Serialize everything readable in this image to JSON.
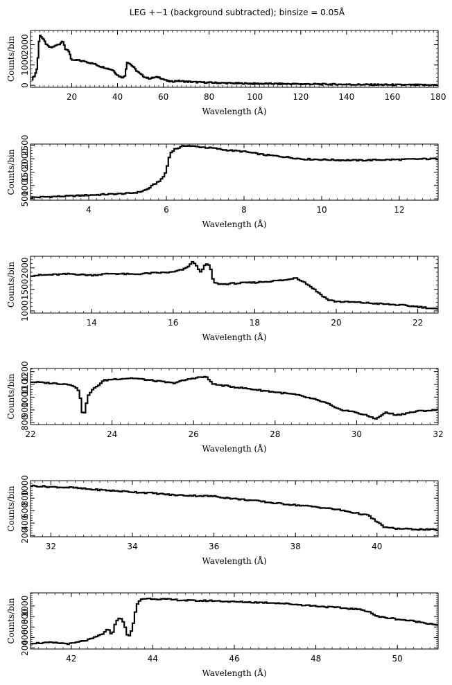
{
  "title": "LEG +−1 (background subtracted); binsize = 0.05Å",
  "colors": {
    "line": "#000000",
    "background": "#ffffff"
  },
  "chart_data": [
    {
      "type": "line",
      "xlabel": "Wavelength (Å)",
      "ylabel": "Counts/bin",
      "xlim": [
        2,
        180
      ],
      "ylim": [
        -100,
        2700
      ],
      "xticks": [
        20,
        40,
        60,
        80,
        100,
        120,
        140,
        160,
        180
      ],
      "yticks": [
        0,
        1000,
        2000
      ],
      "x_minor": 2,
      "y_minor": 200,
      "step": 0.5,
      "series": [
        {
          "x": [
            2.5,
            3,
            4,
            5,
            5.5,
            6,
            6.5,
            7,
            8,
            9,
            10,
            11,
            12,
            13,
            14,
            15,
            16,
            16.5,
            17,
            17.5,
            18,
            19,
            19.5,
            20,
            21,
            22,
            23,
            24,
            26,
            28,
            30,
            32,
            35,
            38,
            40,
            41,
            42,
            43,
            43.5,
            44,
            45,
            46,
            47,
            48,
            50,
            52,
            54,
            56,
            58,
            60,
            62,
            64,
            66,
            68,
            70,
            75,
            80,
            90,
            100,
            110,
            120,
            130,
            140,
            150,
            160,
            170,
            180
          ],
          "y": [
            250,
            350,
            500,
            900,
            1800,
            2500,
            2450,
            2350,
            2200,
            2000,
            1900,
            1850,
            1900,
            1950,
            2000,
            2050,
            2200,
            2150,
            1850,
            1700,
            1750,
            1650,
            1400,
            1250,
            1200,
            1250,
            1230,
            1200,
            1180,
            1100,
            1050,
            950,
            850,
            750,
            500,
            430,
            400,
            420,
            500,
            1150,
            1100,
            1000,
            900,
            750,
            550,
            400,
            330,
            380,
            400,
            300,
            200,
            180,
            220,
            200,
            180,
            150,
            130,
            100,
            80,
            70,
            60,
            50,
            40,
            30,
            20,
            15,
            10
          ]
        }
      ]
    },
    {
      "type": "line",
      "xlabel": "Wavelength (Å)",
      "ylabel": "Counts/bin",
      "xlim": [
        2.5,
        13
      ],
      "ylim": [
        450,
        2550
      ],
      "xticks": [
        4,
        6,
        8,
        10,
        12
      ],
      "yticks": [
        500,
        1000,
        1500,
        2000,
        2500
      ],
      "x_minor": 0.2,
      "y_minor": 100,
      "step": 0.05,
      "series": [
        {
          "x": [
            2.5,
            3.0,
            3.5,
            4.0,
            4.5,
            5.0,
            5.3,
            5.5,
            5.6,
            5.7,
            5.8,
            5.9,
            6.0,
            6.05,
            6.1,
            6.2,
            6.3,
            6.5,
            6.8,
            7.2,
            7.5,
            8.0,
            8.5,
            9.0,
            9.5,
            10.0,
            10.5,
            11.0,
            11.5,
            12.0,
            12.5,
            13.0
          ],
          "y": [
            550,
            580,
            600,
            640,
            670,
            700,
            750,
            850,
            950,
            1050,
            1150,
            1250,
            1550,
            1900,
            2200,
            2350,
            2400,
            2500,
            2450,
            2400,
            2330,
            2270,
            2150,
            2080,
            1990,
            1970,
            1950,
            1940,
            1960,
            1970,
            1990,
            2000
          ]
        }
      ]
    },
    {
      "type": "line",
      "xlabel": "Wavelength (Å)",
      "ylabel": "Counts/bin",
      "xlim": [
        12.5,
        22.5
      ],
      "ylim": [
        950,
        2270
      ],
      "xticks": [
        14,
        16,
        18,
        20,
        22
      ],
      "yticks": [
        1000,
        1500,
        2000
      ],
      "x_minor": 0.2,
      "y_minor": 100,
      "step": 0.05,
      "series": [
        {
          "x": [
            12.5,
            13.0,
            13.5,
            14.0,
            14.5,
            15.0,
            15.5,
            16.0,
            16.3,
            16.5,
            16.6,
            16.7,
            16.8,
            16.9,
            17.0,
            17.2,
            17.5,
            18.0,
            18.5,
            18.8,
            19.0,
            19.2,
            19.4,
            19.6,
            19.8,
            20.0,
            20.5,
            21.0,
            21.5,
            22.0,
            22.5
          ],
          "y": [
            1820,
            1840,
            1860,
            1830,
            1870,
            1850,
            1880,
            1900,
            1980,
            2150,
            2000,
            1900,
            2100,
            2050,
            1650,
            1620,
            1640,
            1660,
            1700,
            1720,
            1780,
            1680,
            1550,
            1400,
            1260,
            1220,
            1200,
            1170,
            1140,
            1100,
            1040
          ]
        }
      ]
    },
    {
      "type": "line",
      "xlabel": "Wavelength (Å)",
      "ylabel": "Counts/bin",
      "xlim": [
        22,
        32
      ],
      "ylim": [
        785,
        1225
      ],
      "xticks": [
        22,
        24,
        26,
        28,
        30,
        32
      ],
      "yticks": [
        800,
        900,
        1000,
        1100,
        1200
      ],
      "x_minor": 0.2,
      "y_minor": 20,
      "step": 0.05,
      "series": [
        {
          "x": [
            22.0,
            22.5,
            23.0,
            23.2,
            23.3,
            23.4,
            23.5,
            23.8,
            24.0,
            24.5,
            25.0,
            25.5,
            26.0,
            26.3,
            26.5,
            27.0,
            27.5,
            28.0,
            28.5,
            29.0,
            29.3,
            29.5,
            30.0,
            30.3,
            30.5,
            30.7,
            31.0,
            31.5,
            32.0
          ],
          "y": [
            1120,
            1110,
            1100,
            1050,
            830,
            1000,
            1050,
            1130,
            1140,
            1150,
            1130,
            1110,
            1150,
            1160,
            1100,
            1080,
            1060,
            1040,
            1020,
            980,
            950,
            910,
            880,
            850,
            830,
            880,
            860,
            890,
            900
          ]
        }
      ]
    },
    {
      "type": "line",
      "xlabel": "Wavelength (Å)",
      "ylabel": "Counts/bin",
      "xlim": [
        31.5,
        41.5
      ],
      "ylim": [
        180,
        1080
      ],
      "xticks": [
        32,
        34,
        36,
        38,
        40
      ],
      "yticks": [
        200,
        400,
        600,
        800,
        1000
      ],
      "x_minor": 0.2,
      "y_minor": 40,
      "step": 0.05,
      "series": [
        {
          "x": [
            31.5,
            32.0,
            32.5,
            33.0,
            33.5,
            34.0,
            34.5,
            35.0,
            35.5,
            36.0,
            36.5,
            37.0,
            37.5,
            38.0,
            38.5,
            39.0,
            39.5,
            39.8,
            40.0,
            40.2,
            40.5,
            41.0,
            41.5
          ],
          "y": [
            1000,
            980,
            970,
            940,
            920,
            900,
            880,
            850,
            840,
            830,
            790,
            760,
            720,
            690,
            660,
            620,
            560,
            520,
            420,
            330,
            310,
            300,
            290
          ]
        }
      ]
    },
    {
      "type": "line",
      "xlabel": "Wavelength (Å)",
      "ylabel": "Counts/bin",
      "xlim": [
        41,
        51
      ],
      "ylim": [
        180,
        1250
      ],
      "xticks": [
        42,
        44,
        46,
        48,
        50
      ],
      "yticks": [
        200,
        400,
        600,
        800,
        1000
      ],
      "x_minor": 0.2,
      "y_minor": 40,
      "step": 0.05,
      "series": [
        {
          "x": [
            41.0,
            41.5,
            42.0,
            42.5,
            42.8,
            42.9,
            43.0,
            43.1,
            43.2,
            43.3,
            43.4,
            43.5,
            43.6,
            43.7,
            43.8,
            44.0,
            44.5,
            45.0,
            45.5,
            46.0,
            46.5,
            47.0,
            47.5,
            48.0,
            48.5,
            49.0,
            49.3,
            49.5,
            50.0,
            50.5,
            51.0
          ],
          "y": [
            290,
            300,
            280,
            370,
            480,
            560,
            450,
            700,
            800,
            650,
            400,
            550,
            1000,
            1130,
            1140,
            1140,
            1120,
            1100,
            1100,
            1080,
            1070,
            1060,
            1030,
            1000,
            970,
            940,
            900,
            800,
            750,
            700,
            640
          ]
        }
      ]
    }
  ]
}
